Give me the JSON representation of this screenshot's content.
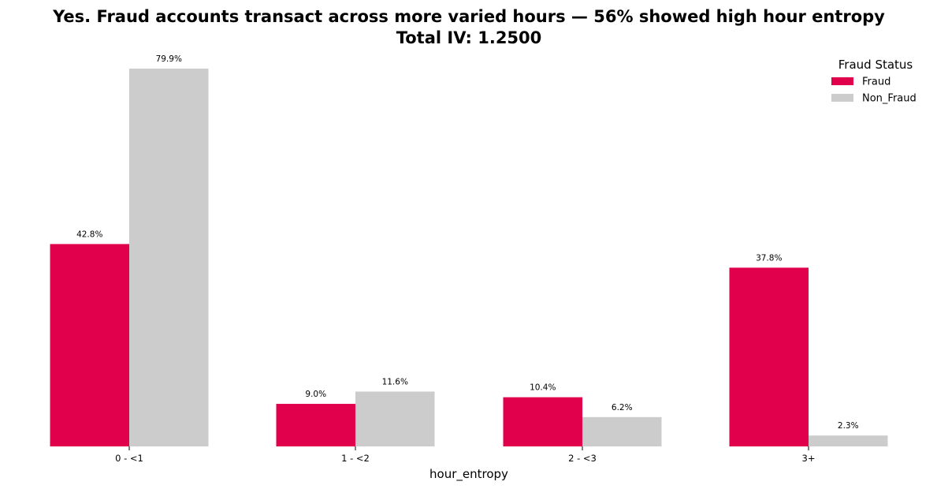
{
  "chart_data": {
    "type": "bar",
    "title": "Yes. Fraud accounts transact across more varied hours — 56% showed high hour entropy",
    "subtitle": "Total IV: 1.2500",
    "xlabel": "hour_entropy",
    "ylabel": "",
    "categories": [
      "0 - <1",
      "1 - <2",
      "2 - <3",
      "3+"
    ],
    "series": [
      {
        "name": "Fraud",
        "color": "#e1004c",
        "values": [
          42.8,
          9.0,
          10.4,
          37.8
        ],
        "labels": [
          "42.8%",
          "9.0%",
          "10.4%",
          "37.8%"
        ]
      },
      {
        "name": "Non_Fraud",
        "color": "#cccccc",
        "values": [
          79.9,
          11.6,
          6.2,
          2.3
        ],
        "labels": [
          "79.9%",
          "11.6%",
          "6.2%",
          "2.3%"
        ]
      }
    ],
    "ylim": [
      0,
      84.0
    ],
    "grid": false,
    "legend": {
      "title": "Fraud Status",
      "position": "top-right"
    }
  }
}
